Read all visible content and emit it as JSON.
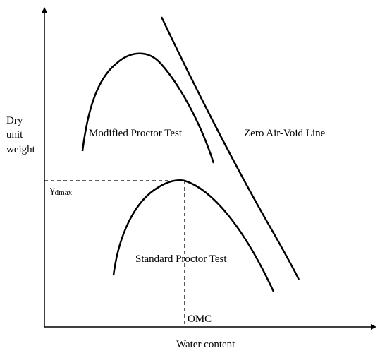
{
  "axes": {
    "ylabel_lines": [
      "Dry",
      "unit",
      "weight"
    ],
    "xlabel": "Water content"
  },
  "curves": {
    "modified_label": "Modified Proctor Test",
    "zero_air_void_label": "Zero Air-Void Line",
    "standard_label": "Standard Proctor Test"
  },
  "markers": {
    "omc_label": "OMC",
    "gamma_symbol": "γ",
    "gamma_subscript": "dmax"
  }
}
